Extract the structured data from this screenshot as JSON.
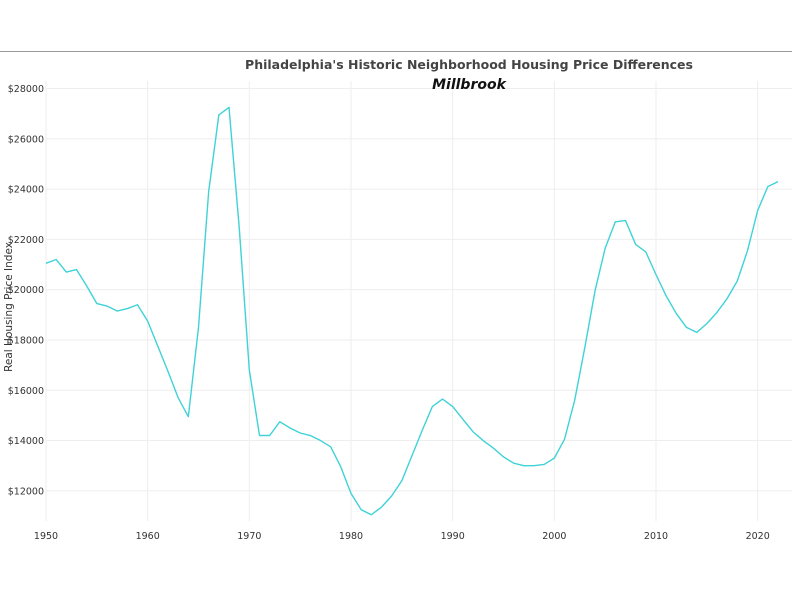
{
  "chart_data": {
    "type": "line",
    "title": "Philadelphia's Historic Neighborhood Housing Price Differences",
    "subtitle": "Millbrook",
    "xlabel": "",
    "ylabel": "Real Housing Price Index",
    "xlim": [
      1950,
      2022
    ],
    "ylim": [
      10800,
      28300
    ],
    "x_ticks": [
      1950,
      1960,
      1970,
      1980,
      1990,
      2000,
      2010,
      2020
    ],
    "y_ticks": [
      12000,
      14000,
      16000,
      18000,
      20000,
      22000,
      24000,
      26000,
      28000
    ],
    "y_tick_labels": [
      "$12000",
      "$14000",
      "$16000",
      "$18000",
      "$20000",
      "$22000",
      "$24000",
      "$26000",
      "$28000"
    ],
    "grid": true,
    "line_color": "#3fd2d7",
    "series": [
      {
        "x": [
          1950,
          1951,
          1952,
          1953,
          1954,
          1955,
          1956,
          1957,
          1958,
          1959,
          1960,
          1961,
          1962,
          1963,
          1964,
          1965,
          1966,
          1967,
          1968,
          1969,
          1970,
          1971,
          1972,
          1973,
          1974,
          1975,
          1976,
          1977,
          1978,
          1979,
          1980,
          1981,
          1982,
          1983,
          1984,
          1985,
          1986,
          1987,
          1988,
          1989,
          1990,
          1991,
          1992,
          1993,
          1994,
          1995,
          1996,
          1997,
          1998,
          1999,
          2000,
          2001,
          2002,
          2003,
          2004,
          2005,
          2006,
          2007,
          2008,
          2009,
          2010,
          2011,
          2012,
          2013,
          2014,
          2015,
          2016,
          2017,
          2018,
          2019,
          2020,
          2021,
          2022
        ],
        "values": [
          21050,
          21200,
          20700,
          20800,
          20150,
          19450,
          19350,
          19150,
          19250,
          19400,
          18750,
          17750,
          16750,
          15700,
          14950,
          18500,
          23900,
          26950,
          27250,
          22500,
          16800,
          14200,
          14200,
          14750,
          14500,
          14300,
          14200,
          14000,
          13750,
          12950,
          11900,
          11250,
          11050,
          11350,
          11800,
          12400,
          13400,
          14400,
          15350,
          15650,
          15350,
          14850,
          14350,
          14000,
          13700,
          13350,
          13100,
          13000,
          13000,
          13050,
          13300,
          14050,
          15600,
          17700,
          19950,
          21650,
          22700,
          22750,
          21800,
          21500,
          20600,
          19750,
          19050,
          18500,
          18300,
          18650,
          19100,
          19650,
          20350,
          21550,
          23150,
          24100,
          24300
        ]
      }
    ]
  }
}
